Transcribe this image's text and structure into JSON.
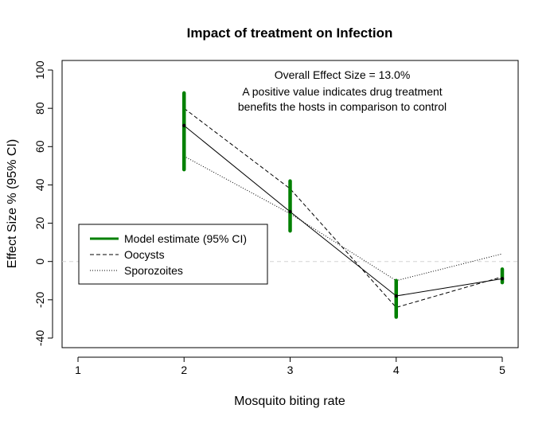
{
  "chart_data": {
    "type": "line",
    "title": "Impact of treatment on Infection",
    "xlabel": "Mosquito biting rate",
    "ylabel": "Effect Size % (95% CI)",
    "xlim": [
      0.85,
      5.15
    ],
    "ylim": [
      -45,
      105
    ],
    "xticks": [
      1,
      2,
      3,
      4,
      5
    ],
    "yticks": [
      -40,
      -20,
      0,
      20,
      40,
      60,
      80,
      100
    ],
    "reference_line_y": 0,
    "annotations": [
      "Overall Effect Size = 13.0%",
      "A positive value indicates drug treatment",
      "benefits the hosts in comparison to control"
    ],
    "legend_position": "left",
    "legend": [
      {
        "label": "Model estimate (95% CI)",
        "style": "thick-solid",
        "color": "#008000"
      },
      {
        "label": "Oocysts",
        "style": "dashed",
        "color": "#000000"
      },
      {
        "label": "Sporozoites",
        "style": "dotted",
        "color": "#000000"
      }
    ],
    "series": [
      {
        "name": "Model estimate (95% CI)",
        "x": [
          2,
          3,
          4,
          5
        ],
        "values": [
          71,
          26,
          -18,
          -9
        ],
        "ci_lower": [
          48,
          16,
          -29,
          -11
        ],
        "ci_upper": [
          88,
          42,
          -10,
          -4
        ]
      },
      {
        "name": "Oocysts",
        "x": [
          2,
          3,
          4,
          5
        ],
        "values": [
          80,
          38,
          -24,
          -8
        ]
      },
      {
        "name": "Sporozoites",
        "x": [
          2,
          3,
          4,
          5
        ],
        "values": [
          55,
          25,
          -10,
          4
        ]
      }
    ],
    "colors": {
      "ci": "#008000",
      "line": "#000000",
      "reference": "#d3d3d3"
    }
  }
}
